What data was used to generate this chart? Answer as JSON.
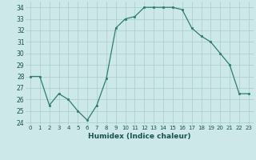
{
  "x": [
    0,
    1,
    2,
    3,
    4,
    5,
    6,
    7,
    8,
    9,
    10,
    11,
    12,
    13,
    14,
    15,
    16,
    17,
    18,
    19,
    20,
    21,
    22,
    23
  ],
  "y": [
    28.0,
    28.0,
    25.5,
    26.5,
    26.0,
    25.0,
    24.2,
    25.5,
    27.8,
    32.2,
    33.0,
    33.2,
    34.0,
    34.0,
    34.0,
    34.0,
    33.8,
    32.2,
    31.5,
    31.0,
    30.0,
    29.0,
    26.5,
    26.5
  ],
  "ylim": [
    23.8,
    34.5
  ],
  "yticks": [
    24,
    25,
    26,
    27,
    28,
    29,
    30,
    31,
    32,
    33,
    34
  ],
  "xlabel": "Humidex (Indice chaleur)",
  "line_color": "#2e7d6e",
  "marker_color": "#2e7d6e",
  "bg_color": "#cce8e8",
  "grid_color": "#aacccc"
}
